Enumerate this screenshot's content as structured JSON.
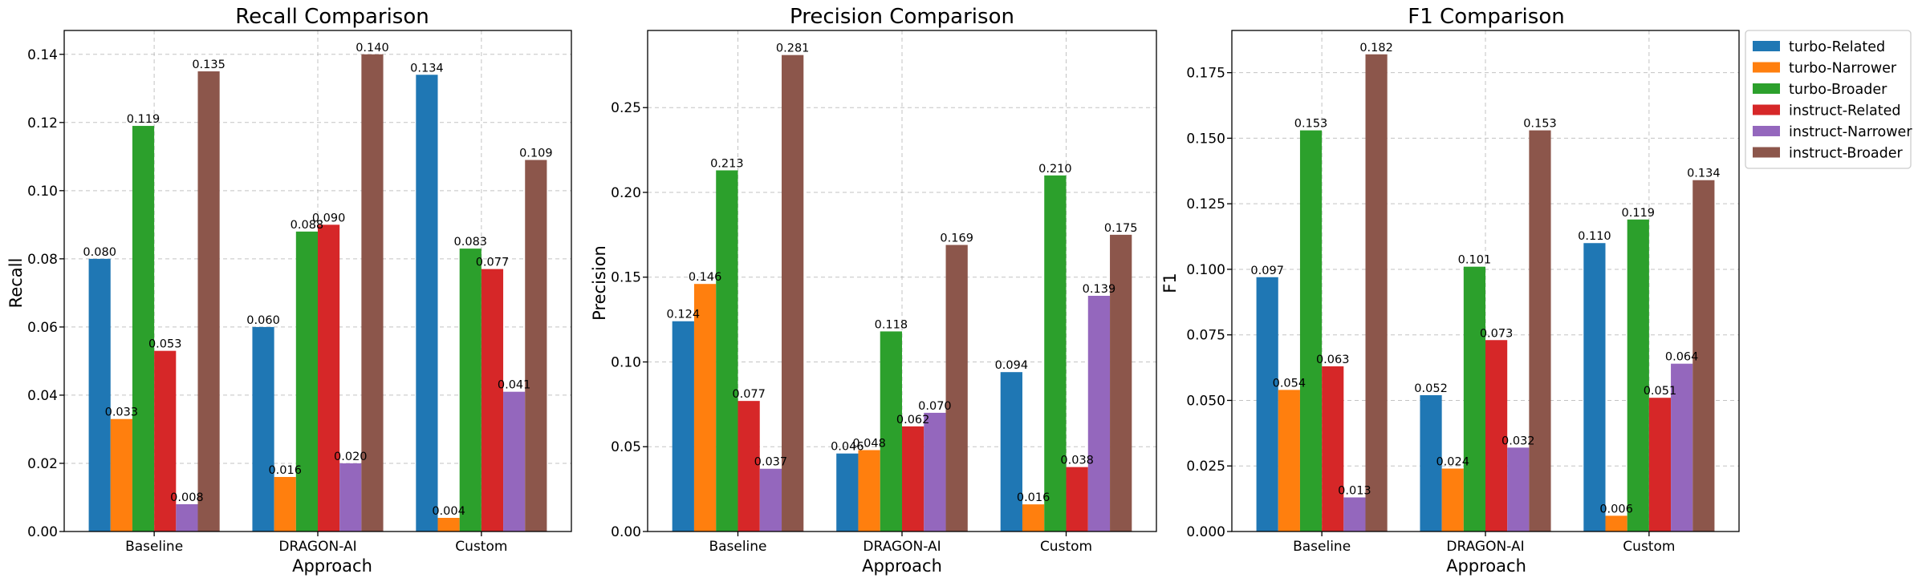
{
  "chart_data": [
    {
      "type": "bar",
      "title": "Recall Comparison",
      "xlabel": "Approach",
      "ylabel": "Recall",
      "categories": [
        "Baseline",
        "DRAGON-AI",
        "Custom"
      ],
      "ylim": [
        0,
        0.147
      ],
      "yticks": [
        0.0,
        0.02,
        0.04,
        0.06,
        0.08,
        0.1,
        0.12,
        0.14
      ],
      "ytick_labels": [
        "0.00",
        "0.02",
        "0.04",
        "0.06",
        "0.08",
        "0.10",
        "0.12",
        "0.14"
      ],
      "grid": true,
      "series": [
        {
          "name": "turbo-Related",
          "values": [
            0.08,
            0.06,
            0.134
          ],
          "labels": [
            "0.080",
            "0.060",
            "0.134"
          ]
        },
        {
          "name": "turbo-Narrower",
          "values": [
            0.033,
            0.016,
            0.004
          ],
          "labels": [
            "0.033",
            "0.016",
            "0.004"
          ]
        },
        {
          "name": "turbo-Broader",
          "values": [
            0.119,
            0.088,
            0.083
          ],
          "labels": [
            "0.119",
            "0.088",
            "0.083"
          ]
        },
        {
          "name": "instruct-Related",
          "values": [
            0.053,
            0.09,
            0.077
          ],
          "labels": [
            "0.053",
            "0.090",
            "0.077"
          ]
        },
        {
          "name": "instruct-Narrower",
          "values": [
            0.008,
            0.02,
            0.041
          ],
          "labels": [
            "0.008",
            "0.020",
            "0.041"
          ]
        },
        {
          "name": "instruct-Broader",
          "values": [
            0.135,
            0.14,
            0.109
          ],
          "labels": [
            "0.135",
            "0.140",
            "0.109"
          ]
        }
      ]
    },
    {
      "type": "bar",
      "title": "Precision Comparison",
      "xlabel": "Approach",
      "ylabel": "Precision",
      "categories": [
        "Baseline",
        "DRAGON-AI",
        "Custom"
      ],
      "ylim": [
        0,
        0.2955
      ],
      "yticks": [
        0.0,
        0.05,
        0.1,
        0.15,
        0.2,
        0.25
      ],
      "ytick_labels": [
        "0.00",
        "0.05",
        "0.10",
        "0.15",
        "0.20",
        "0.25"
      ],
      "grid": true,
      "series": [
        {
          "name": "turbo-Related",
          "values": [
            0.124,
            0.046,
            0.094
          ],
          "labels": [
            "0.124",
            "0.046",
            "0.094"
          ]
        },
        {
          "name": "turbo-Narrower",
          "values": [
            0.146,
            0.048,
            0.016
          ],
          "labels": [
            "0.146",
            "0.048",
            "0.016"
          ]
        },
        {
          "name": "turbo-Broader",
          "values": [
            0.213,
            0.118,
            0.21
          ],
          "labels": [
            "0.213",
            "0.118",
            "0.210"
          ]
        },
        {
          "name": "instruct-Related",
          "values": [
            0.077,
            0.062,
            0.038
          ],
          "labels": [
            "0.077",
            "0.062",
            "0.038"
          ]
        },
        {
          "name": "instruct-Narrower",
          "values": [
            0.037,
            0.07,
            0.139
          ],
          "labels": [
            "0.037",
            "0.070",
            "0.139"
          ]
        },
        {
          "name": "instruct-Broader",
          "values": [
            0.281,
            0.169,
            0.175
          ],
          "labels": [
            "0.281",
            "0.169",
            "0.175"
          ]
        }
      ]
    },
    {
      "type": "bar",
      "title": "F1 Comparison",
      "xlabel": "Approach",
      "ylabel": "F1",
      "categories": [
        "Baseline",
        "DRAGON-AI",
        "Custom"
      ],
      "ylim": [
        0,
        0.1911
      ],
      "yticks": [
        0.0,
        0.025,
        0.05,
        0.075,
        0.1,
        0.125,
        0.15,
        0.175
      ],
      "ytick_labels": [
        "0.000",
        "0.025",
        "0.050",
        "0.075",
        "0.100",
        "0.125",
        "0.150",
        "0.175"
      ],
      "grid": true,
      "series": [
        {
          "name": "turbo-Related",
          "values": [
            0.097,
            0.052,
            0.11
          ],
          "labels": [
            "0.097",
            "0.052",
            "0.110"
          ]
        },
        {
          "name": "turbo-Narrower",
          "values": [
            0.054,
            0.024,
            0.006
          ],
          "labels": [
            "0.054",
            "0.024",
            "0.006"
          ]
        },
        {
          "name": "turbo-Broader",
          "values": [
            0.153,
            0.101,
            0.119
          ],
          "labels": [
            "0.153",
            "0.101",
            "0.119"
          ]
        },
        {
          "name": "instruct-Related",
          "values": [
            0.063,
            0.073,
            0.051
          ],
          "labels": [
            "0.063",
            "0.073",
            "0.051"
          ]
        },
        {
          "name": "instruct-Narrower",
          "values": [
            0.013,
            0.032,
            0.064
          ],
          "labels": [
            "0.013",
            "0.032",
            "0.064"
          ]
        },
        {
          "name": "instruct-Broader",
          "values": [
            0.182,
            0.153,
            0.134
          ],
          "labels": [
            "0.182",
            "0.153",
            "0.134"
          ]
        }
      ]
    }
  ],
  "legend": {
    "placement": "right, outside, top",
    "entries": [
      "turbo-Related",
      "turbo-Narrower",
      "turbo-Broader",
      "instruct-Related",
      "instruct-Narrower",
      "instruct-Broader"
    ]
  },
  "colors": {
    "turbo-Related": "#1f77b4",
    "turbo-Narrower": "#ff7f0e",
    "turbo-Broader": "#2ca02c",
    "instruct-Related": "#d62728",
    "instruct-Narrower": "#9467bd",
    "instruct-Broader": "#8c564b"
  }
}
